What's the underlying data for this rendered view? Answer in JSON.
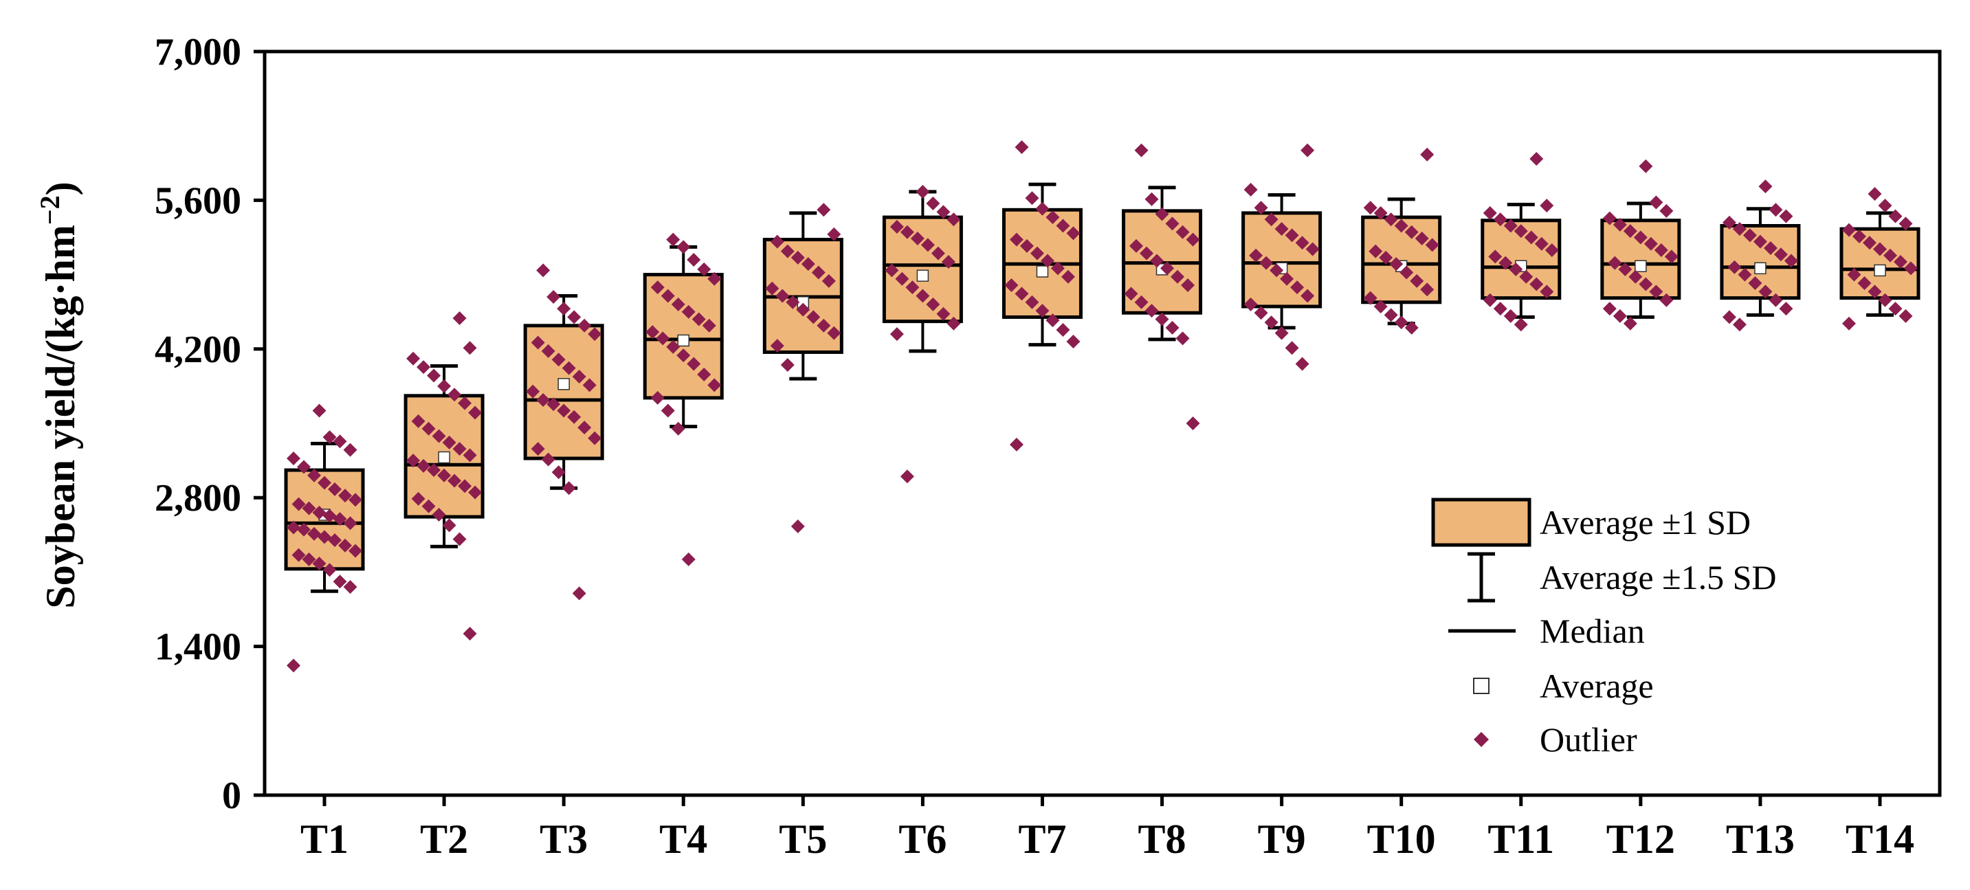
{
  "chart_data": {
    "type": "box",
    "ylabel_main": "Soybean yield/(kg·hm",
    "ylabel_sup": "−2",
    "ylabel_close": ")",
    "xlabel": "",
    "ylim": [
      0,
      7000
    ],
    "yticks": [
      0,
      1400,
      2800,
      4200,
      5600,
      7000
    ],
    "ytick_labels": [
      "0",
      "1,400",
      "2,800",
      "4,200",
      "5,600",
      "7,000"
    ],
    "categories": [
      "T1",
      "T2",
      "T3",
      "T4",
      "T5",
      "T6",
      "T7",
      "T8",
      "T9",
      "T10",
      "T11",
      "T12",
      "T13",
      "T14"
    ],
    "boxes": [
      {
        "low15": 1920,
        "low1": 2130,
        "median": 2560,
        "mean": 2640,
        "high1": 3060,
        "high15": 3310
      },
      {
        "low15": 2340,
        "low1": 2620,
        "median": 3110,
        "mean": 3180,
        "high1": 3760,
        "high15": 4040
      },
      {
        "low15": 2890,
        "low1": 3170,
        "median": 3720,
        "mean": 3870,
        "high1": 4420,
        "high15": 4700
      },
      {
        "low15": 3470,
        "low1": 3740,
        "median": 4290,
        "mean": 4280,
        "high1": 4900,
        "high15": 5160
      },
      {
        "low15": 3920,
        "low1": 4170,
        "median": 4690,
        "mean": 4640,
        "high1": 5230,
        "high15": 5480
      },
      {
        "low15": 4180,
        "low1": 4460,
        "median": 4990,
        "mean": 4890,
        "high1": 5440,
        "high15": 5680
      },
      {
        "low15": 4240,
        "low1": 4500,
        "median": 5000,
        "mean": 4930,
        "high1": 5510,
        "high15": 5750
      },
      {
        "low15": 4290,
        "low1": 4540,
        "median": 5010,
        "mean": 4950,
        "high1": 5500,
        "high15": 5720
      },
      {
        "low15": 4400,
        "low1": 4600,
        "median": 5010,
        "mean": 4960,
        "high1": 5480,
        "high15": 5650
      },
      {
        "low15": 4440,
        "low1": 4640,
        "median": 5000,
        "mean": 4980,
        "high1": 5440,
        "high15": 5610
      },
      {
        "low15": 4500,
        "low1": 4680,
        "median": 4970,
        "mean": 4980,
        "high1": 5410,
        "high15": 5560
      },
      {
        "low15": 4500,
        "low1": 4680,
        "median": 5000,
        "mean": 4980,
        "high1": 5410,
        "high15": 5570
      },
      {
        "low15": 4520,
        "low1": 4680,
        "median": 4970,
        "mean": 4960,
        "high1": 5360,
        "high15": 5520
      },
      {
        "low15": 4520,
        "low1": 4680,
        "median": 4950,
        "mean": 4940,
        "high1": 5330,
        "high15": 5480
      }
    ],
    "points": [
      [
        1220,
        1960,
        2010,
        2120,
        2180,
        2220,
        2260,
        2300,
        2350,
        2400,
        2430,
        2460,
        2500,
        2520,
        2560,
        2600,
        2630,
        2660,
        2700,
        2740,
        2780,
        2820,
        2880,
        2940,
        3010,
        3090,
        3170,
        3250,
        3330,
        3370,
        3620
      ],
      [
        1520,
        2410,
        2540,
        2640,
        2720,
        2790,
        2850,
        2910,
        2960,
        3010,
        3060,
        3100,
        3150,
        3200,
        3260,
        3320,
        3380,
        3450,
        3520,
        3600,
        3690,
        3770,
        3850,
        3950,
        4030,
        4110,
        4210,
        4490
      ],
      [
        1900,
        2890,
        3040,
        3160,
        3260,
        3360,
        3460,
        3560,
        3620,
        3680,
        3720,
        3800,
        3860,
        3940,
        4020,
        4100,
        4180,
        4260,
        4340,
        4420,
        4500,
        4580,
        4690,
        4940
      ],
      [
        2220,
        3450,
        3620,
        3740,
        3860,
        3960,
        4060,
        4140,
        4220,
        4300,
        4360,
        4420,
        4480,
        4550,
        4620,
        4700,
        4780,
        4860,
        4950,
        5040,
        5160,
        5230
      ],
      [
        2530,
        4050,
        4230,
        4350,
        4420,
        4500,
        4570,
        4640,
        4700,
        4770,
        4840,
        4920,
        5000,
        5060,
        5120,
        5210,
        5280,
        5510
      ],
      [
        3000,
        4340,
        4440,
        4530,
        4620,
        4700,
        4780,
        4860,
        4940,
        5020,
        5100,
        5180,
        5240,
        5300,
        5350,
        5420,
        5490,
        5570,
        5680
      ],
      [
        3300,
        4270,
        4380,
        4470,
        4560,
        4640,
        4720,
        4800,
        4880,
        4960,
        5030,
        5100,
        5170,
        5230,
        5290,
        5360,
        5440,
        5520,
        5620,
        6100
      ],
      [
        3500,
        4300,
        4400,
        4480,
        4560,
        4640,
        4720,
        4800,
        4880,
        4960,
        5030,
        5100,
        5170,
        5230,
        5300,
        5380,
        5470,
        5610,
        6070
      ],
      [
        4060,
        4210,
        4350,
        4450,
        4540,
        4620,
        4700,
        4780,
        4860,
        4940,
        5010,
        5080,
        5140,
        5200,
        5270,
        5330,
        5420,
        5530,
        5700,
        6070
      ],
      [
        4400,
        4450,
        4520,
        4600,
        4680,
        4760,
        4840,
        4920,
        5000,
        5060,
        5120,
        5180,
        5240,
        5300,
        5360,
        5420,
        5480,
        5530,
        6030
      ],
      [
        4430,
        4510,
        4580,
        4660,
        4740,
        4810,
        4880,
        4950,
        5010,
        5070,
        5130,
        5190,
        5250,
        5310,
        5360,
        5420,
        5480,
        5550,
        5990
      ],
      [
        4440,
        4510,
        4580,
        4660,
        4740,
        4810,
        4880,
        4950,
        5010,
        5070,
        5130,
        5190,
        5250,
        5310,
        5370,
        5430,
        5500,
        5580,
        5920
      ],
      [
        4430,
        4500,
        4580,
        4660,
        4740,
        4820,
        4900,
        4970,
        5030,
        5090,
        5150,
        5210,
        5270,
        5330,
        5390,
        5450,
        5510,
        5730
      ],
      [
        4440,
        4510,
        4580,
        4660,
        4740,
        4820,
        4900,
        4960,
        5020,
        5080,
        5140,
        5200,
        5260,
        5320,
        5380,
        5450,
        5550,
        5660
      ]
    ],
    "legend": [
      {
        "key": "box",
        "label": "Average ±1 SD"
      },
      {
        "key": "whisker",
        "label": "Average ±1.5 SD"
      },
      {
        "key": "median",
        "label": "Median"
      },
      {
        "key": "mean",
        "label": "Average"
      },
      {
        "key": "point",
        "label": "Outlier"
      }
    ],
    "legend_position": "lower-right",
    "colors": {
      "box_fill": "#efb67a",
      "box_stroke": "#000000",
      "point": "#8b1e4f",
      "mean_fill": "#ffffff",
      "axis": "#000000"
    }
  }
}
